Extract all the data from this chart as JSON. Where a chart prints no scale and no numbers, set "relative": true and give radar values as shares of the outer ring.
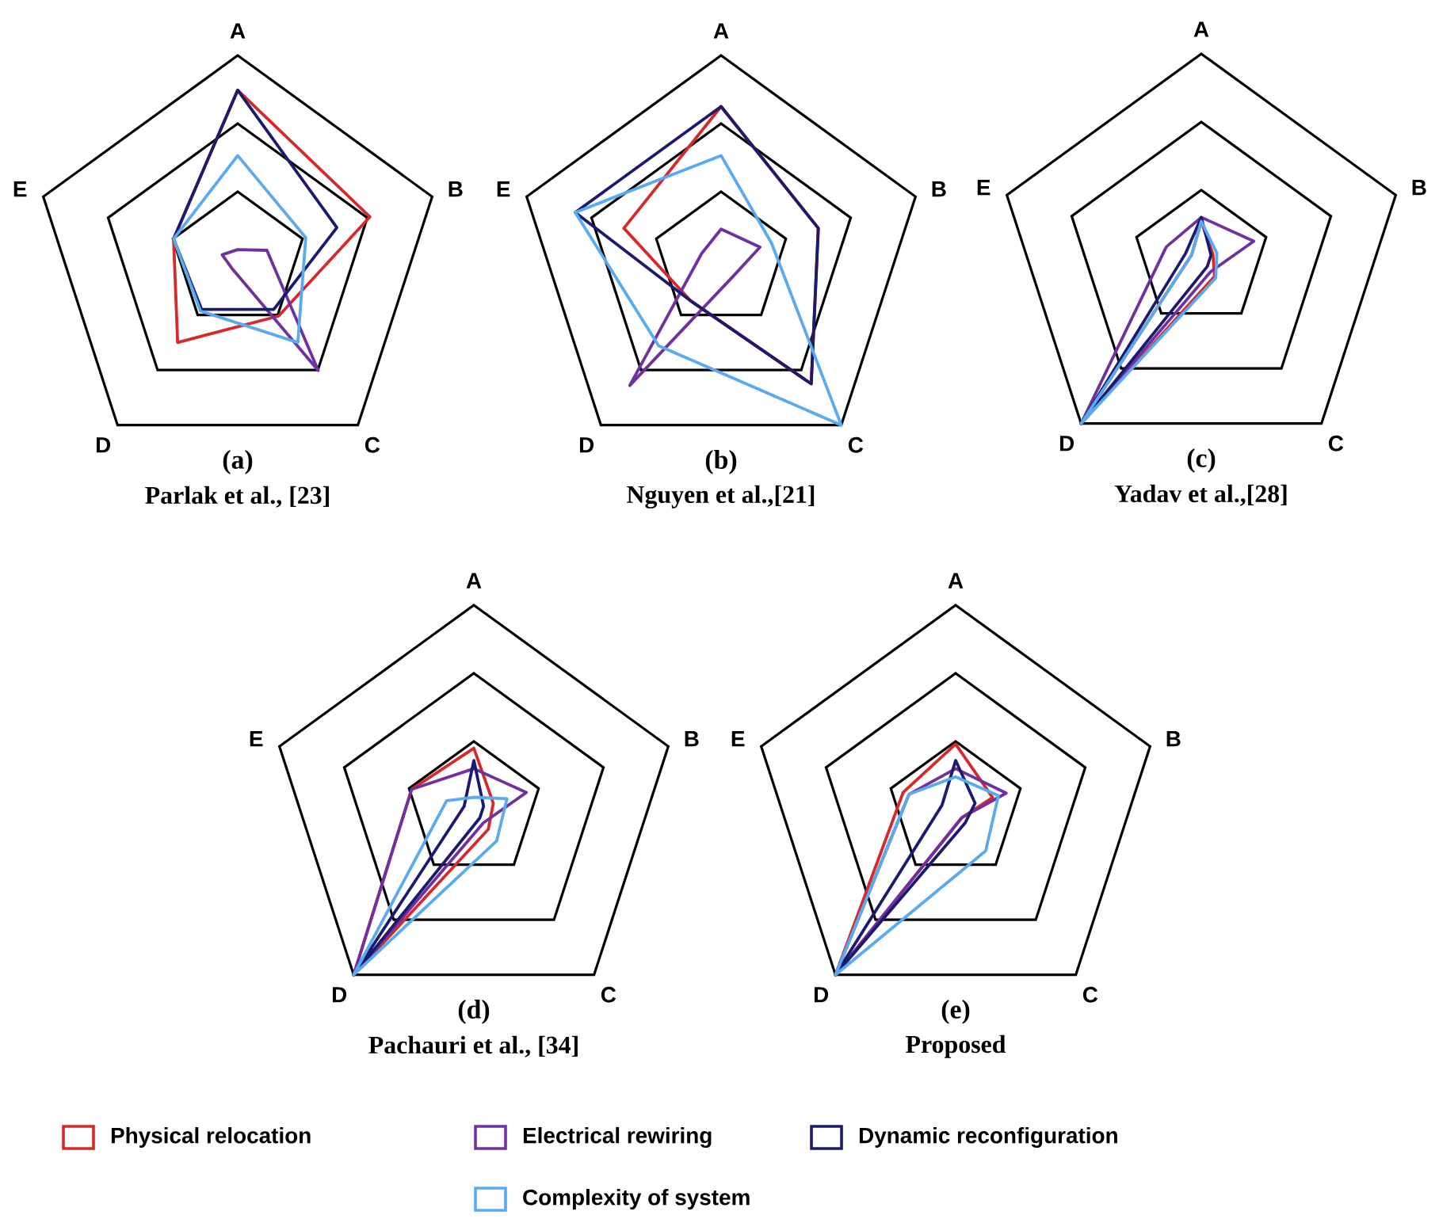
{
  "chart_data": [
    {
      "type": "radar",
      "title": "(a)",
      "subtitle": "Parlak et al., [23]",
      "categories": [
        "A",
        "B",
        "C",
        "D",
        "E"
      ],
      "relative": true,
      "grid": true,
      "legend": "bottom",
      "series": [
        {
          "name": "Physical relocation",
          "color": "#d42a2a",
          "values": [
            0.83,
            0.68,
            0.34,
            0.5,
            0.33
          ]
        },
        {
          "name": "Electrical rewiring",
          "color": "#7030a0",
          "values": [
            0.05,
            0.15,
            0.67,
            0.05,
            0.08
          ]
        },
        {
          "name": "Dynamic reconfiguration",
          "color": "#1a1a6e",
          "values": [
            0.83,
            0.51,
            0.3,
            0.3,
            0.33
          ]
        },
        {
          "name": "Complexity of system",
          "color": "#5aaaf0",
          "values": [
            0.51,
            0.35,
            0.5,
            0.31,
            0.33
          ]
        }
      ]
    },
    {
      "type": "radar",
      "title": "(b)",
      "subtitle": "Nguyen et al.,[21]",
      "categories": [
        "A",
        "B",
        "C",
        "D",
        "E"
      ],
      "relative": true,
      "grid": true,
      "series": [
        {
          "color": "#d42a2a",
          "values": [
            0.75,
            0.5,
            0.75,
            0.25,
            0.5
          ]
        },
        {
          "color": "#7030a0",
          "values": [
            0.15,
            0.2,
            0.1,
            0.76,
            0.1
          ]
        },
        {
          "color": "#1a1a6e",
          "values": [
            0.75,
            0.5,
            0.75,
            0.25,
            0.75
          ]
        },
        {
          "color": "#5aaaf0",
          "values": [
            0.51,
            0.26,
            1.0,
            0.52,
            0.75
          ]
        }
      ]
    },
    {
      "type": "radar",
      "title": "(c)",
      "subtitle": "Yadav et al.,[28]",
      "categories": [
        "A",
        "B",
        "C",
        "D",
        "E"
      ],
      "relative": true,
      "grid": true,
      "series": [
        {
          "color": "#d42a2a",
          "values": [
            0.18,
            0.06,
            0.11,
            1.0,
            0.05
          ]
        },
        {
          "color": "#7030a0",
          "values": [
            0.2,
            0.27,
            0.08,
            1.0,
            0.18
          ]
        },
        {
          "color": "#1a1a6e",
          "values": [
            0.2,
            0.05,
            0.05,
            1.0,
            0.08
          ]
        },
        {
          "color": "#5aaaf0",
          "values": [
            0.18,
            0.08,
            0.12,
            1.0,
            0.05
          ]
        }
      ]
    },
    {
      "type": "radar",
      "title": "(d)",
      "subtitle": "Pachauri et al., [34]",
      "categories": [
        "A",
        "B",
        "C",
        "D",
        "E"
      ],
      "relative": true,
      "grid": true,
      "series": [
        {
          "color": "#d42a2a",
          "values": [
            0.3,
            0.1,
            0.12,
            1.0,
            0.32
          ]
        },
        {
          "color": "#7030a0",
          "values": [
            0.2,
            0.27,
            0.08,
            1.0,
            0.32
          ]
        },
        {
          "color": "#1a1a6e",
          "values": [
            0.24,
            0.05,
            0.05,
            1.0,
            0.05
          ]
        },
        {
          "color": "#5aaaf0",
          "values": [
            0.06,
            0.17,
            0.19,
            1.0,
            0.14
          ]
        }
      ]
    },
    {
      "type": "radar",
      "title": "(e)",
      "subtitle": "Proposed",
      "categories": [
        "A",
        "B",
        "C",
        "D",
        "E"
      ],
      "relative": true,
      "grid": true,
      "series": [
        {
          "color": "#d42a2a",
          "values": [
            0.32,
            0.19,
            0.05,
            1.0,
            0.27
          ]
        },
        {
          "color": "#7030a0",
          "values": [
            0.2,
            0.26,
            0.05,
            1.0,
            0.24
          ]
        },
        {
          "color": "#1a1a6e",
          "values": [
            0.24,
            0.1,
            0.08,
            1.0,
            0.07
          ]
        },
        {
          "color": "#5aaaf0",
          "values": [
            0.16,
            0.22,
            0.25,
            1.0,
            0.24
          ]
        }
      ]
    }
  ]
}
